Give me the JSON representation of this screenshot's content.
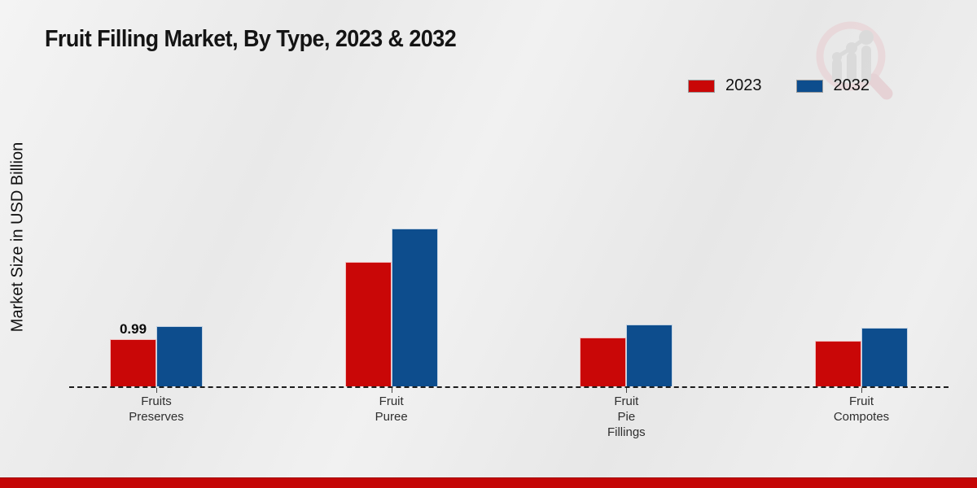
{
  "page": {
    "title": "Fruit Filling Market, By Type, 2023 & 2032"
  },
  "axes": {
    "y_label": "Market Size in USD Billion"
  },
  "watermark_icon": "magnifier-growth-chart-logo",
  "colors": {
    "series_2023": "#c90707",
    "series_2032": "#0d4d8d",
    "footer_strip": "#c40606",
    "baseline": "#1c1c1c",
    "background": "#ebebeb"
  },
  "chart_data": {
    "type": "bar",
    "title": "Fruit Filling Market, By Type, 2023 & 2032",
    "xlabel": "",
    "ylabel": "Market Size in USD Billion",
    "categories": [
      "Fruits\nPreserves",
      "Fruit\nPuree",
      "Fruit\nPie\nFillings",
      "Fruit\nCompotes"
    ],
    "series": [
      {
        "name": "2023",
        "color": "#c90707",
        "values": [
          0.99,
          2.61,
          1.02,
          0.96
        ]
      },
      {
        "name": "2032",
        "color": "#0d4d8d",
        "values": [
          1.26,
          3.31,
          1.3,
          1.23
        ]
      }
    ],
    "data_labels": [
      {
        "series_index": 0,
        "category_index": 0,
        "text": "0.99"
      }
    ],
    "ylim": [
      0,
      3.5
    ],
    "grid": false,
    "axis_line_style": "dashed-baseline",
    "legend_position": "top-right"
  }
}
